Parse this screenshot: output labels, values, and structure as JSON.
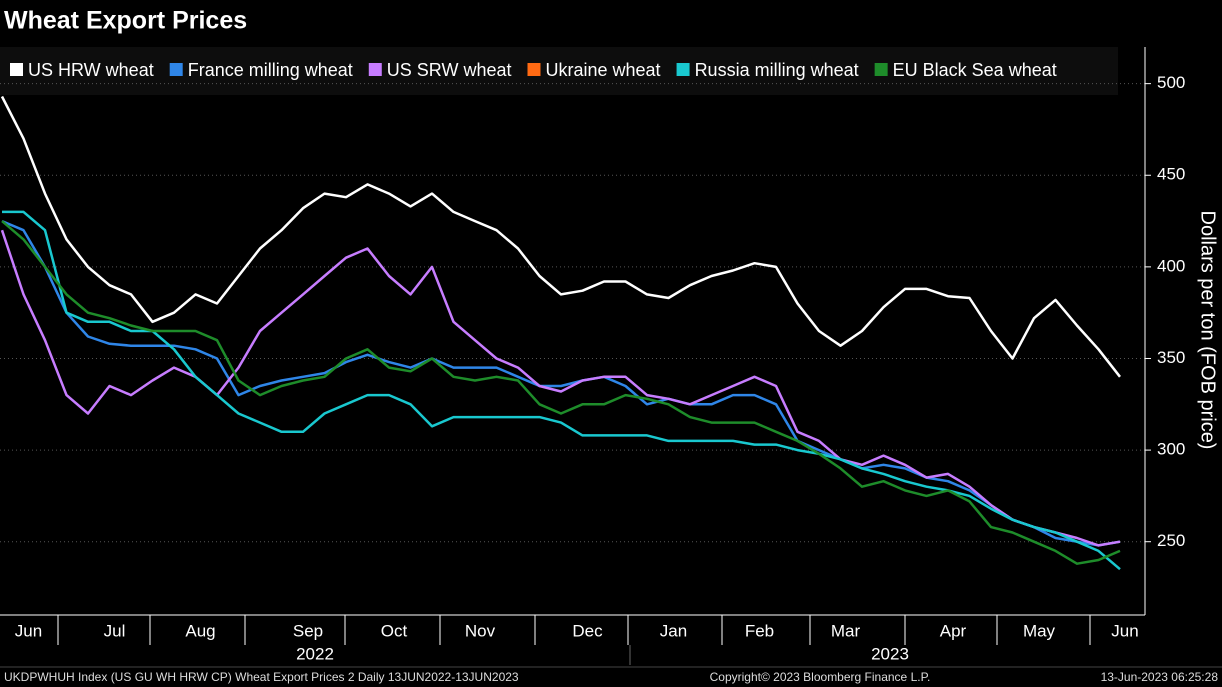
{
  "chart_data": {
    "type": "line",
    "title": "Wheat Export Prices",
    "y_label": "Dollars per ton (FOB price)",
    "categories": [
      null,
      "Jun",
      null,
      null,
      null,
      "Jul",
      null,
      null,
      null,
      "Aug",
      null,
      null,
      null,
      null,
      "Sep",
      null,
      null,
      null,
      "Oct",
      null,
      null,
      null,
      "Nov",
      null,
      null,
      null,
      null,
      "Dec",
      null,
      null,
      null,
      "Jan",
      null,
      null,
      null,
      "Feb",
      null,
      null,
      null,
      "Mar",
      null,
      null,
      null,
      null,
      "Apr",
      null,
      null,
      null,
      "May",
      null,
      null,
      null,
      "Jun"
    ],
    "year_labels": [
      "2022",
      "2023"
    ],
    "ylim": [
      210,
      520
    ],
    "yticks": [
      250,
      300,
      350,
      400,
      450,
      500
    ],
    "grid": true,
    "series": [
      {
        "name": "US HRW wheat",
        "color": "#ffffff",
        "values": [
          493,
          470,
          440,
          415,
          400,
          390,
          385,
          370,
          375,
          385,
          380,
          395,
          410,
          420,
          432,
          440,
          438,
          445,
          440,
          433,
          440,
          430,
          425,
          420,
          410,
          395,
          385,
          387,
          392,
          392,
          385,
          383,
          390,
          395,
          398,
          402,
          400,
          380,
          365,
          357,
          365,
          378,
          388,
          388,
          384,
          383,
          365,
          350,
          372,
          382,
          368,
          355,
          340
        ]
      },
      {
        "name": "France milling wheat",
        "color": "#2f86e8",
        "values": [
          425,
          420,
          400,
          375,
          362,
          358,
          357,
          357,
          357,
          355,
          350,
          330,
          335,
          338,
          340,
          342,
          348,
          352,
          348,
          345,
          350,
          345,
          345,
          345,
          340,
          335,
          335,
          338,
          340,
          335,
          325,
          328,
          325,
          325,
          330,
          330,
          325,
          305,
          300,
          295,
          290,
          292,
          290,
          285,
          283,
          278,
          270,
          262,
          258,
          252,
          250,
          248,
          250
        ]
      },
      {
        "name": "US SRW wheat",
        "color": "#c77dff",
        "values": [
          420,
          385,
          360,
          330,
          320,
          335,
          330,
          338,
          345,
          340,
          330,
          345,
          365,
          375,
          385,
          395,
          405,
          410,
          395,
          385,
          400,
          370,
          360,
          350,
          345,
          335,
          332,
          338,
          340,
          340,
          330,
          328,
          325,
          330,
          335,
          340,
          335,
          310,
          305,
          295,
          292,
          297,
          292,
          285,
          287,
          280,
          270,
          262,
          258,
          255,
          252,
          248,
          250
        ]
      },
      {
        "name": "Ukraine wheat",
        "color": "#ff6a13",
        "values": [
          null,
          null,
          null,
          null,
          null,
          null,
          null,
          null,
          null,
          null,
          null,
          null,
          null,
          null,
          null,
          null,
          null,
          null,
          null,
          null,
          null,
          null,
          null,
          null,
          null,
          null,
          null,
          null,
          null,
          null,
          null,
          null,
          null,
          null,
          null,
          null,
          null,
          null,
          null,
          null,
          null,
          null,
          null,
          null,
          null,
          null,
          null,
          null,
          null,
          null,
          null,
          null,
          null
        ]
      },
      {
        "name": "Russia milling wheat",
        "color": "#19c8cf",
        "values": [
          430,
          430,
          420,
          375,
          370,
          370,
          365,
          365,
          355,
          340,
          330,
          320,
          315,
          310,
          310,
          320,
          325,
          330,
          330,
          325,
          313,
          318,
          318,
          318,
          318,
          318,
          315,
          308,
          308,
          308,
          308,
          305,
          305,
          305,
          305,
          303,
          303,
          300,
          298,
          295,
          290,
          287,
          283,
          280,
          278,
          275,
          268,
          262,
          258,
          255,
          250,
          245,
          235
        ]
      },
      {
        "name": "EU Black Sea wheat",
        "color": "#1e8c2a",
        "values": [
          425,
          415,
          400,
          385,
          375,
          372,
          368,
          365,
          365,
          365,
          360,
          338,
          330,
          335,
          338,
          340,
          350,
          355,
          345,
          343,
          350,
          340,
          338,
          340,
          338,
          325,
          320,
          325,
          325,
          330,
          328,
          325,
          318,
          315,
          315,
          315,
          310,
          305,
          298,
          290,
          280,
          283,
          278,
          275,
          278,
          272,
          258,
          255,
          250,
          245,
          238,
          240,
          245
        ]
      }
    ],
    "footer_left": "UKDPWHUH Index (US GU WH HRW CP) Wheat Export Prices 2  Daily 13JUN2022-13JUN2023",
    "footer_center": "Copyright© 2023 Bloomberg Finance L.P.",
    "footer_right": "13-Jun-2023 06:25:28"
  }
}
